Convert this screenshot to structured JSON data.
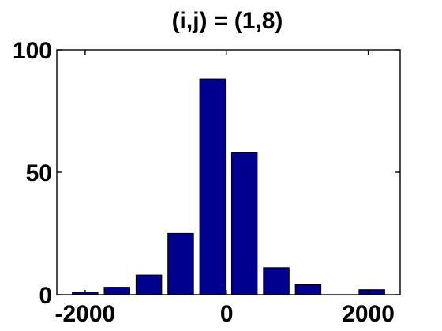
{
  "chart_data": {
    "type": "bar",
    "title": "(i,j) = (1,8)",
    "xlabel": "",
    "ylabel": "",
    "x": [
      -2000,
      -1550,
      -1100,
      -650,
      -200,
      250,
      700,
      1150,
      1600,
      2050
    ],
    "values": [
      1,
      3,
      8,
      25,
      88,
      58,
      11,
      4,
      0,
      2
    ],
    "xlim": [
      -2400,
      2450
    ],
    "ylim": [
      0,
      100
    ],
    "xticks": [
      -2000,
      0,
      2000
    ],
    "yticks": [
      0,
      50,
      100
    ],
    "bar_color": "#00008f",
    "grid": false,
    "legend": "none"
  }
}
